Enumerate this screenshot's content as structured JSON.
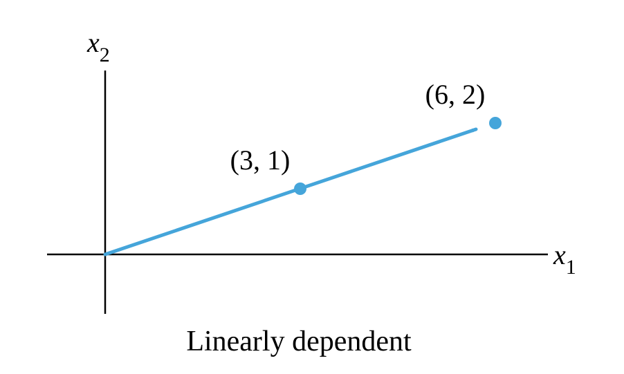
{
  "axes": {
    "x_label_base": "x",
    "x_label_sub": "1",
    "y_label_base": "x",
    "y_label_sub": "2"
  },
  "vector": {
    "from": [
      0,
      0
    ],
    "to": [
      6,
      2
    ],
    "color": "#45A5DA"
  },
  "points": [
    {
      "x": 3,
      "y": 1,
      "label": "(3, 1)"
    },
    {
      "x": 6,
      "y": 2,
      "label": "(6, 2)"
    }
  ],
  "caption": "Linearly dependent"
}
